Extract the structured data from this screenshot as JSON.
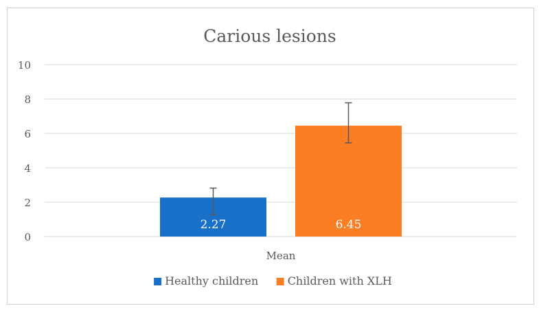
{
  "chart_data": {
    "type": "bar",
    "title": "Carious lesions",
    "xlabel": "",
    "ylabel": "",
    "categories": [
      "Mean"
    ],
    "ylim": [
      0,
      10
    ],
    "yticks": [
      0,
      2,
      4,
      6,
      8,
      10
    ],
    "grid": true,
    "legend_position": "bottom",
    "series": [
      {
        "name": "Healthy children",
        "values": [
          2.27
        ],
        "error_low": [
          1.27
        ],
        "error_high": [
          2.82
        ],
        "data_labels": [
          "2.27"
        ],
        "color": "#1870c8"
      },
      {
        "name": "Children with XLH",
        "values": [
          6.45
        ],
        "error_low": [
          5.45
        ],
        "error_high": [
          7.78
        ],
        "data_labels": [
          "6.45"
        ],
        "color": "#fb7e24"
      }
    ]
  }
}
